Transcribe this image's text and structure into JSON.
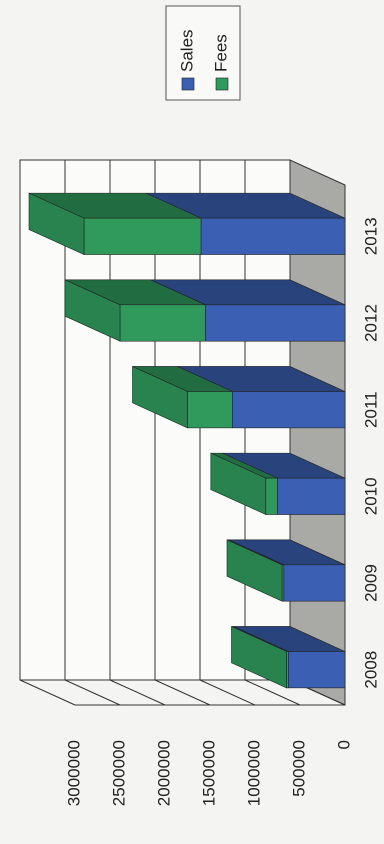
{
  "chart_data": {
    "type": "bar",
    "stacked": true,
    "categories": [
      "2008",
      "2009",
      "2010",
      "2011",
      "2012",
      "2013"
    ],
    "series": [
      {
        "name": "Sales",
        "color": "#3b5fb3",
        "values": [
          630000,
          680000,
          750000,
          1250000,
          1550000,
          1600000
        ]
      },
      {
        "name": "Fees",
        "color": "#2f9a5c",
        "values": [
          20000,
          20000,
          130000,
          500000,
          950000,
          1300000
        ]
      }
    ],
    "ylim": [
      0,
      3000000
    ],
    "yticks": [
      0,
      500000,
      1000000,
      1500000,
      2000000,
      2500000,
      3000000
    ],
    "grid": true,
    "legend": "top"
  }
}
